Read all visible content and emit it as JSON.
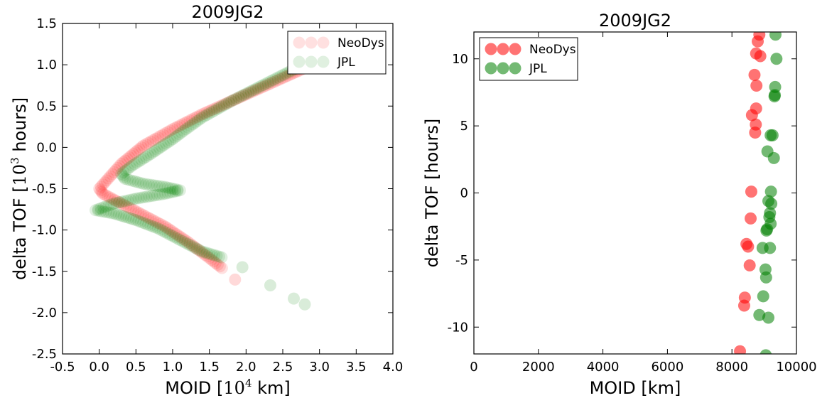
{
  "colors": {
    "neodys": "#ff0000",
    "jpl": "#008000",
    "axes": "#000000"
  },
  "chart_data": [
    {
      "type": "scatter",
      "title": "2009JG2",
      "xlabel": "MOID [10^4 km]",
      "xlabel_parts": [
        "MOID ",
        "10",
        "4",
        " km"
      ],
      "ylabel": "delta TOF [10^3 hours]",
      "ylabel_parts": [
        "delta TOF ",
        "10",
        "3",
        " hours"
      ],
      "xlim": [
        -0.5,
        4.0
      ],
      "ylim": [
        -2.5,
        1.5
      ],
      "xticks": [
        "-0.5",
        "0.0",
        "0.5",
        "1.0",
        "1.5",
        "2.0",
        "2.5",
        "3.0",
        "3.5",
        "4.0"
      ],
      "yticks": [
        "-2.5",
        "-2.0",
        "-1.5",
        "-1.0",
        "-0.5",
        "0.0",
        "0.5",
        "1.0",
        "1.5"
      ],
      "grid": false,
      "legend_position": "top-right",
      "series": [
        {
          "name": "NeoDys",
          "color": "#ff0000",
          "polylines": [
            [
              [
                2.85,
                0.98
              ],
              [
                2.6,
                0.88
              ],
              [
                2.2,
                0.72
              ],
              [
                1.8,
                0.56
              ],
              [
                1.4,
                0.4
              ],
              [
                1.0,
                0.22
              ],
              [
                0.6,
                0.02
              ],
              [
                0.3,
                -0.2
              ],
              [
                0.05,
                -0.45
              ],
              [
                0.0,
                -0.5
              ],
              [
                0.05,
                -0.56
              ],
              [
                0.3,
                -0.68
              ],
              [
                0.6,
                -0.82
              ],
              [
                0.9,
                -0.96
              ],
              [
                1.2,
                -1.14
              ],
              [
                1.5,
                -1.34
              ],
              [
                1.7,
                -1.48
              ]
            ]
          ],
          "points": [
            [
              1.85,
              -1.6
            ]
          ]
        },
        {
          "name": "JPL",
          "color": "#008000",
          "polylines": [
            [
              [
                2.95,
                1.05
              ],
              [
                2.6,
                0.92
              ],
              [
                2.2,
                0.74
              ],
              [
                1.8,
                0.56
              ],
              [
                1.4,
                0.36
              ],
              [
                1.15,
                0.2
              ],
              [
                1.0,
                0.1
              ],
              [
                0.7,
                -0.08
              ],
              [
                0.45,
                -0.22
              ],
              [
                0.3,
                -0.32
              ],
              [
                0.35,
                -0.38
              ],
              [
                0.6,
                -0.44
              ],
              [
                0.9,
                -0.48
              ],
              [
                1.1,
                -0.52
              ],
              [
                0.9,
                -0.56
              ],
              [
                0.5,
                -0.62
              ],
              [
                0.2,
                -0.68
              ],
              [
                -0.05,
                -0.76
              ],
              [
                0.2,
                -0.8
              ],
              [
                0.5,
                -0.88
              ],
              [
                0.8,
                -0.98
              ],
              [
                1.1,
                -1.12
              ],
              [
                1.4,
                -1.26
              ],
              [
                1.7,
                -1.34
              ]
            ]
          ],
          "points": [
            [
              1.95,
              -1.45
            ],
            [
              2.33,
              -1.67
            ],
            [
              2.65,
              -1.83
            ],
            [
              2.8,
              -1.9
            ]
          ]
        }
      ]
    },
    {
      "type": "scatter",
      "title": "2009JG2",
      "xlabel": "MOID [km]",
      "ylabel": "delta TOF [hours]",
      "xlim": [
        0,
        10000
      ],
      "ylim": [
        -12,
        12
      ],
      "xticks": [
        "0",
        "2000",
        "4000",
        "6000",
        "8000",
        "10000"
      ],
      "yticks": [
        "-10",
        "-5",
        "0",
        "5",
        "10"
      ],
      "grid": false,
      "legend_position": "top-left",
      "series": [
        {
          "name": "NeoDys",
          "color": "#ff0000",
          "points": [
            [
              8850,
              11.8
            ],
            [
              8800,
              11.3
            ],
            [
              8750,
              10.4
            ],
            [
              8880,
              10.2
            ],
            [
              8700,
              8.8
            ],
            [
              8760,
              8.0
            ],
            [
              8750,
              6.3
            ],
            [
              8620,
              5.8
            ],
            [
              8740,
              5.1
            ],
            [
              8720,
              4.5
            ],
            [
              8600,
              0.1
            ],
            [
              8580,
              -1.9
            ],
            [
              8450,
              -3.8
            ],
            [
              8500,
              -4.0
            ],
            [
              8550,
              -5.4
            ],
            [
              8400,
              -7.8
            ],
            [
              8380,
              -8.4
            ],
            [
              8250,
              -11.8
            ]
          ]
        },
        {
          "name": "JPL",
          "color": "#008000",
          "points": [
            [
              9350,
              11.8
            ],
            [
              9380,
              10.0
            ],
            [
              9340,
              7.9
            ],
            [
              9330,
              7.3
            ],
            [
              9320,
              7.2
            ],
            [
              9200,
              4.3
            ],
            [
              9260,
              4.3
            ],
            [
              9100,
              3.1
            ],
            [
              9300,
              2.6
            ],
            [
              9210,
              0.1
            ],
            [
              9130,
              -0.6
            ],
            [
              9220,
              -0.8
            ],
            [
              9180,
              -1.5
            ],
            [
              9160,
              -1.8
            ],
            [
              9200,
              -2.3
            ],
            [
              9070,
              -2.8
            ],
            [
              9090,
              -2.7
            ],
            [
              8950,
              -4.1
            ],
            [
              9180,
              -4.1
            ],
            [
              9040,
              -5.7
            ],
            [
              9060,
              -6.3
            ],
            [
              8970,
              -7.7
            ],
            [
              8850,
              -9.1
            ],
            [
              9130,
              -9.3
            ],
            [
              9050,
              -12.1
            ]
          ]
        }
      ]
    }
  ]
}
